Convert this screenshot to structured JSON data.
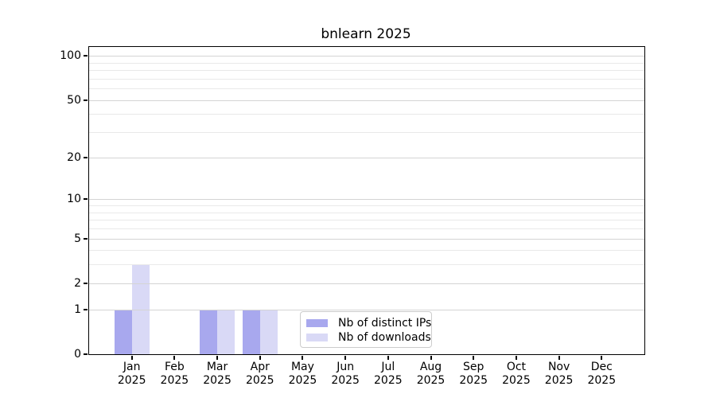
{
  "title": "bnlearn 2025",
  "chart_data": {
    "type": "bar",
    "title": "bnlearn 2025",
    "xlabel": "",
    "ylabel": "",
    "yscale": "log1p",
    "ylim": [
      0,
      115
    ],
    "grid": "horizontal",
    "legend_position": "lower-center-inside",
    "categories": [
      "Jan 2025",
      "Feb 2025",
      "Mar 2025",
      "Apr 2025",
      "May 2025",
      "Jun 2025",
      "Jul 2025",
      "Aug 2025",
      "Sep 2025",
      "Oct 2025",
      "Nov 2025",
      "Dec 2025"
    ],
    "y_major_ticks": [
      0,
      1,
      2,
      5,
      10,
      20,
      50,
      100
    ],
    "y_minor_gridlines": [
      3,
      4,
      6,
      7,
      8,
      9,
      30,
      40,
      60,
      70,
      80,
      90
    ],
    "series": [
      {
        "name": "Nb of distinct IPs",
        "color": "#a8a8ee",
        "values": [
          1,
          0,
          1,
          1,
          0,
          0,
          0,
          0,
          0,
          0,
          0,
          0
        ]
      },
      {
        "name": "Nb of downloads",
        "color": "#d9d9f6",
        "values": [
          3,
          0,
          1,
          1,
          0,
          0,
          0,
          0,
          0,
          0,
          0,
          0
        ]
      }
    ],
    "colors": {
      "spine": "#000000",
      "grid_major": "#d4d4d4",
      "grid_minor": "#e9e9e9",
      "background": "#ffffff"
    }
  }
}
